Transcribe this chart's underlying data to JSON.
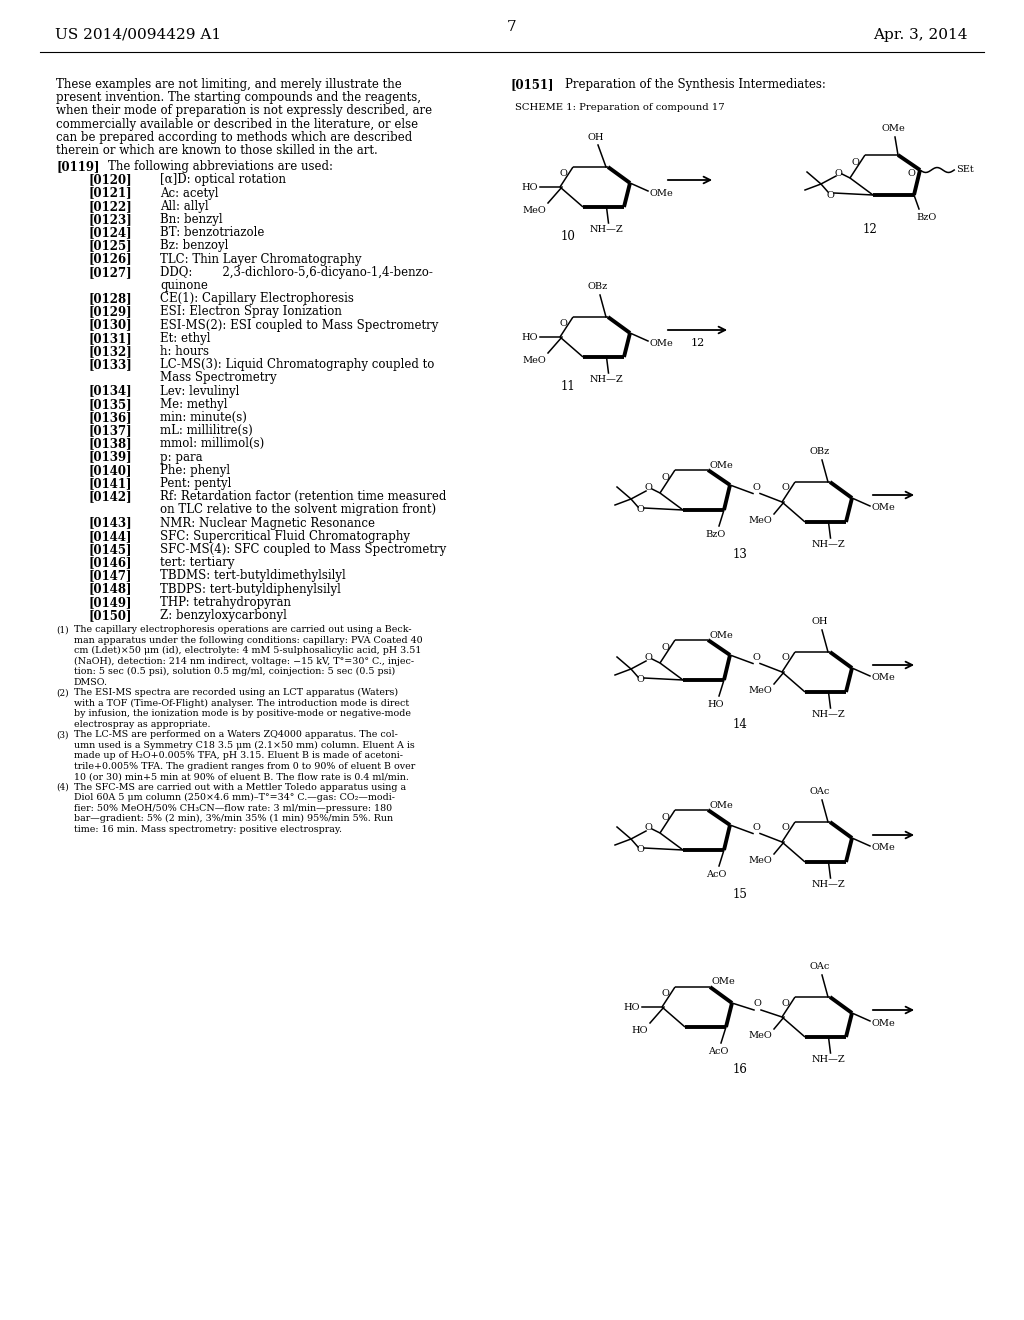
{
  "page_header_left": "US 2014/0094429 A1",
  "page_header_right": "Apr. 3, 2014",
  "page_number": "7",
  "left_para": [
    "These examples are not limiting, and merely illustrate the",
    "present invention. The starting compounds and the reagents,",
    "when their mode of preparation is not expressly described, are",
    "commercially available or described in the literature, or else",
    "can be prepared according to methods which are described",
    "therein or which are known to those skilled in the art."
  ],
  "abbrevs": [
    [
      "[0119]",
      "The following abbreviations are used:",
      0
    ],
    [
      "[0120]",
      "[α]D: optical rotation",
      1
    ],
    [
      "[0121]",
      "Ac: acetyl",
      1
    ],
    [
      "[0122]",
      "All: allyl",
      1
    ],
    [
      "[0123]",
      "Bn: benzyl",
      1
    ],
    [
      "[0124]",
      "BT: benzotriazole",
      1
    ],
    [
      "[0125]",
      "Bz: benzoyl",
      1
    ],
    [
      "[0126]",
      "TLC: Thin Layer Chromatography",
      1
    ],
    [
      "[0127]",
      "DDQ:        2,3-dichloro-5,6-dicyano-1,4-benzo-",
      1
    ],
    [
      "",
      "quinone",
      2
    ],
    [
      "[0128]",
      "CE(1): Capillary Electrophoresis",
      1
    ],
    [
      "[0129]",
      "ESI: Electron Spray Ionization",
      1
    ],
    [
      "[0130]",
      "ESI-MS(2): ESI coupled to Mass Spectrometry",
      1
    ],
    [
      "[0131]",
      "Et: ethyl",
      1
    ],
    [
      "[0132]",
      "h: hours",
      1
    ],
    [
      "[0133]",
      "LC-MS(3): Liquid Chromatography coupled to",
      1
    ],
    [
      "",
      "Mass Spectrometry",
      2
    ],
    [
      "[0134]",
      "Lev: levulinyl",
      1
    ],
    [
      "[0135]",
      "Me: methyl",
      1
    ],
    [
      "[0136]",
      "min: minute(s)",
      1
    ],
    [
      "[0137]",
      "mL: millilitre(s)",
      1
    ],
    [
      "[0138]",
      "mmol: millimol(s)",
      1
    ],
    [
      "[0139]",
      "p: para",
      1
    ],
    [
      "[0140]",
      "Phe: phenyl",
      1
    ],
    [
      "[0141]",
      "Pent: pentyl",
      1
    ],
    [
      "[0142]",
      "Rf: Retardation factor (retention time measured",
      1
    ],
    [
      "",
      "on TLC relative to the solvent migration front)",
      2
    ],
    [
      "[0143]",
      "NMR: Nuclear Magnetic Resonance",
      1
    ],
    [
      "[0144]",
      "SFC: Supercritical Fluid Chromatography",
      1
    ],
    [
      "[0145]",
      "SFC-MS(4): SFC coupled to Mass Spectrometry",
      1
    ],
    [
      "[0146]",
      "tert: tertiary",
      1
    ],
    [
      "[0147]",
      "TBDMS: tert-butyldimethylsilyl",
      1
    ],
    [
      "[0148]",
      "TBDPS: tert-butyldiphenylsilyl",
      1
    ],
    [
      "[0149]",
      "THP: tetrahydropyran",
      1
    ],
    [
      "[0150]",
      "Z: benzyloxycarbonyl",
      1
    ]
  ],
  "footnotes": [
    [
      "(1)",
      "The capillary electrophoresis operations are carried out using a Beck-"
    ],
    [
      "",
      "man apparatus under the following conditions: capillary: PVA Coated 40"
    ],
    [
      "",
      "cm (Ldet)×50 μm (id), electrolyte: 4 mM 5-sulphosalicylic acid, pH 3.51"
    ],
    [
      "",
      "(NaOH), detection: 214 nm indirect, voltage: −15 kV, T°=30° C., injec-"
    ],
    [
      "",
      "tion: 5 sec (0.5 psi), solution 0.5 mg/ml, coinjection: 5 sec (0.5 psi)"
    ],
    [
      "",
      "DMSO."
    ],
    [
      "(2)",
      "The ESI-MS spectra are recorded using an LCT apparatus (Waters)"
    ],
    [
      "",
      "with a TOF (Time-Of-Flight) analyser. The introduction mode is direct"
    ],
    [
      "",
      "by infusion, the ionization mode is by positive-mode or negative-mode"
    ],
    [
      "",
      "electrospray as appropriate."
    ],
    [
      "(3)",
      "The LC-MS are performed on a Waters ZQ4000 apparatus. The col-"
    ],
    [
      "",
      "umn used is a Symmetry C18 3.5 μm (2.1×50 mm) column. Eluent A is"
    ],
    [
      "",
      "made up of H₂O+0.005% TFA, pH 3.15. Eluent B is made of acetoni-"
    ],
    [
      "",
      "trile+0.005% TFA. The gradient ranges from 0 to 90% of eluent B over"
    ],
    [
      "",
      "10 (or 30) min+5 min at 90% of eluent B. The flow rate is 0.4 ml/min."
    ],
    [
      "(4)",
      "The SFC-MS are carried out with a Mettler Toledo apparatus using a"
    ],
    [
      "",
      "Diol 60A 5 μm column (250×4.6 mm)–T°=34° C.—gas: CO₂—modi-"
    ],
    [
      "",
      "fier: 50% MeOH/50% CH₃CN—flow rate: 3 ml/min—pressure: 180"
    ],
    [
      "",
      "bar—gradient: 5% (2 min), 3%/min 35% (1 min) 95%/min 5%. Run"
    ],
    [
      "",
      "time: 16 min. Mass spectrometry: positive electrospray."
    ]
  ]
}
